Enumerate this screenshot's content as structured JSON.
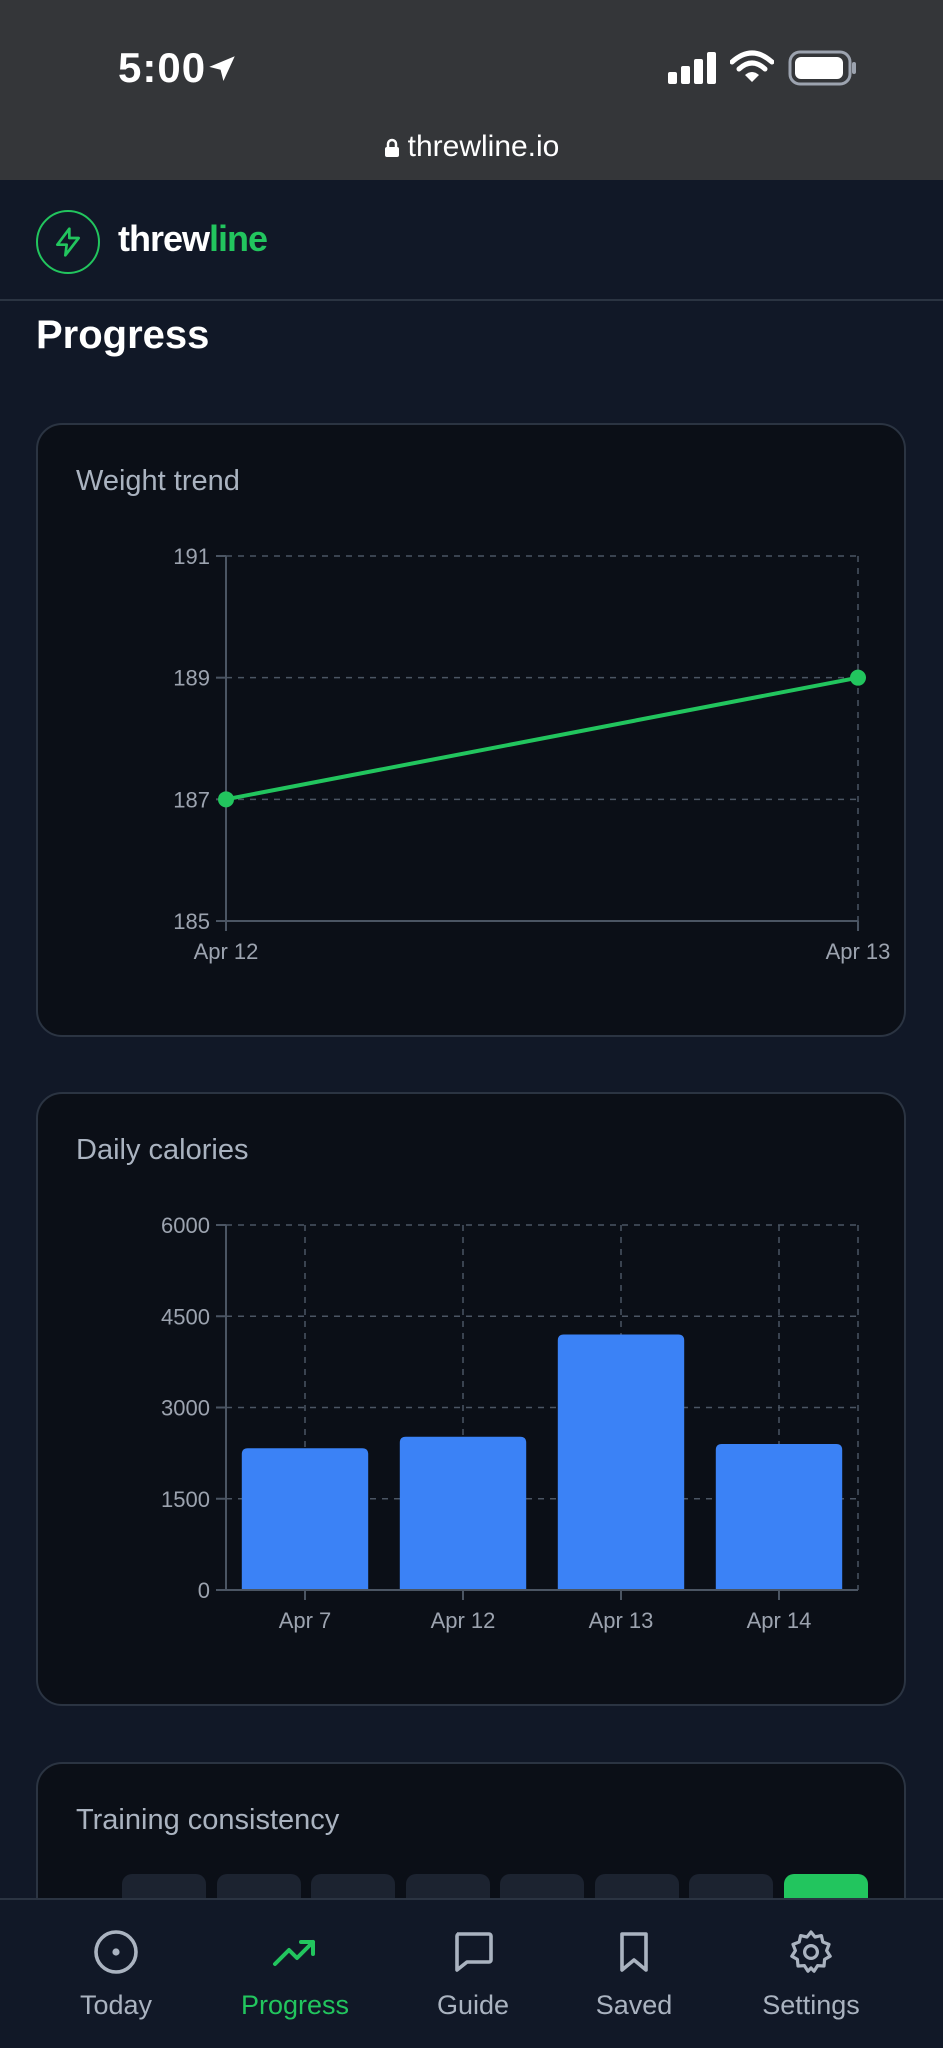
{
  "status_bar": {
    "time": "5:00",
    "url": "threwline.io"
  },
  "header": {
    "brand_part1": "threw",
    "brand_part2": "line"
  },
  "page": {
    "title": "Progress"
  },
  "colors": {
    "accent": "#22c55e",
    "bar": "#3b82f6",
    "background": "#111827",
    "card": "#0b0f17"
  },
  "cards": {
    "weight": {
      "title": "Weight trend"
    },
    "calories": {
      "title": "Daily calories"
    },
    "training": {
      "title": "Training consistency",
      "cells": [
        0,
        0,
        0,
        0,
        0,
        0,
        0,
        1
      ]
    }
  },
  "chart_data": [
    {
      "type": "line",
      "title": "Weight trend",
      "x": [
        "Apr 12",
        "Apr 13"
      ],
      "series": [
        {
          "values": [
            187,
            189
          ]
        }
      ],
      "yticks": [
        185,
        187,
        189,
        191
      ],
      "ylim": [
        185,
        191
      ],
      "grid": true
    },
    {
      "type": "bar",
      "title": "Daily calories",
      "categories": [
        "Apr 7",
        "Apr 12",
        "Apr 13",
        "Apr 14"
      ],
      "values": [
        2330,
        2520,
        4200,
        2400
      ],
      "yticks": [
        0,
        1500,
        3000,
        4500,
        6000
      ],
      "ylim": [
        0,
        6000
      ],
      "grid": true
    }
  ],
  "nav": {
    "items": [
      {
        "label": "Today",
        "icon": "clock-icon",
        "active": false
      },
      {
        "label": "Progress",
        "icon": "trend-icon",
        "active": true
      },
      {
        "label": "Guide",
        "icon": "chat-icon",
        "active": false
      },
      {
        "label": "Saved",
        "icon": "bookmark-icon",
        "active": false
      },
      {
        "label": "Settings",
        "icon": "gear-icon",
        "active": false
      }
    ]
  }
}
